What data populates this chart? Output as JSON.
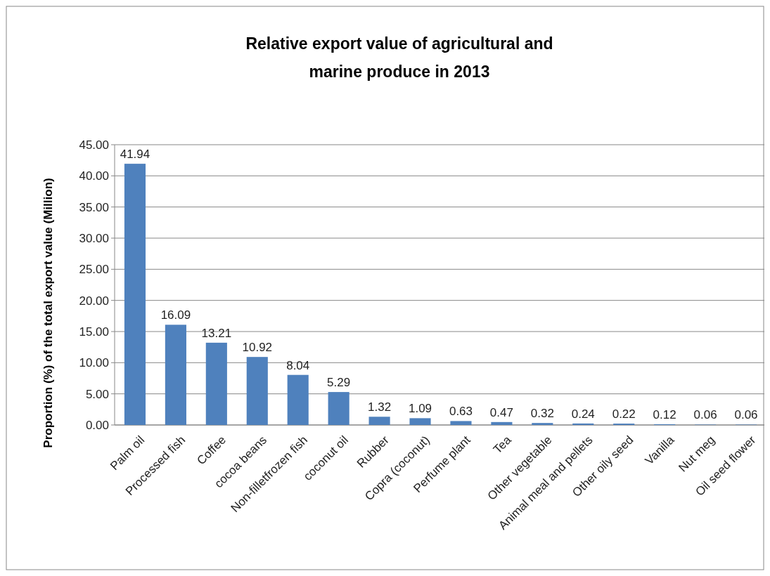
{
  "chart_data": {
    "type": "bar",
    "title": "Relative export value of agricultural and marine produce in 2013",
    "ylabel": "Proportion (%) of the total  export value  (Million)",
    "categories": [
      "Palm oil",
      "Processed fish",
      "Coffee",
      "cocoa beans",
      "Non-filletfrozen fish",
      "coconut oil",
      "Rubber",
      "Copra (coconut)",
      "Perfume plant",
      "Tea",
      "Other vegetable",
      "Animal meal and pellets",
      "Other oily seed",
      "Vanilla",
      "Nut meg",
      "Oil seed flower"
    ],
    "values": [
      41.94,
      16.09,
      13.21,
      10.92,
      8.04,
      5.29,
      1.32,
      1.09,
      0.63,
      0.47,
      0.32,
      0.24,
      0.22,
      0.12,
      0.06,
      0.06
    ],
    "color": "#4f81bd",
    "ylim": [
      0,
      45
    ],
    "yticks": [
      {
        "value": 0,
        "label": "0.00"
      },
      {
        "value": 5,
        "label": "5.00"
      },
      {
        "value": 10,
        "label": "10.00"
      },
      {
        "value": 15,
        "label": "15.00"
      },
      {
        "value": 20,
        "label": "20.00"
      },
      {
        "value": 25,
        "label": "25.00"
      },
      {
        "value": 30,
        "label": "30.00"
      },
      {
        "value": 35,
        "label": "35.00"
      },
      {
        "value": 40,
        "label": "40.00"
      },
      {
        "value": 45,
        "label": "45.00"
      }
    ],
    "grid": "y",
    "data_labels": true
  }
}
